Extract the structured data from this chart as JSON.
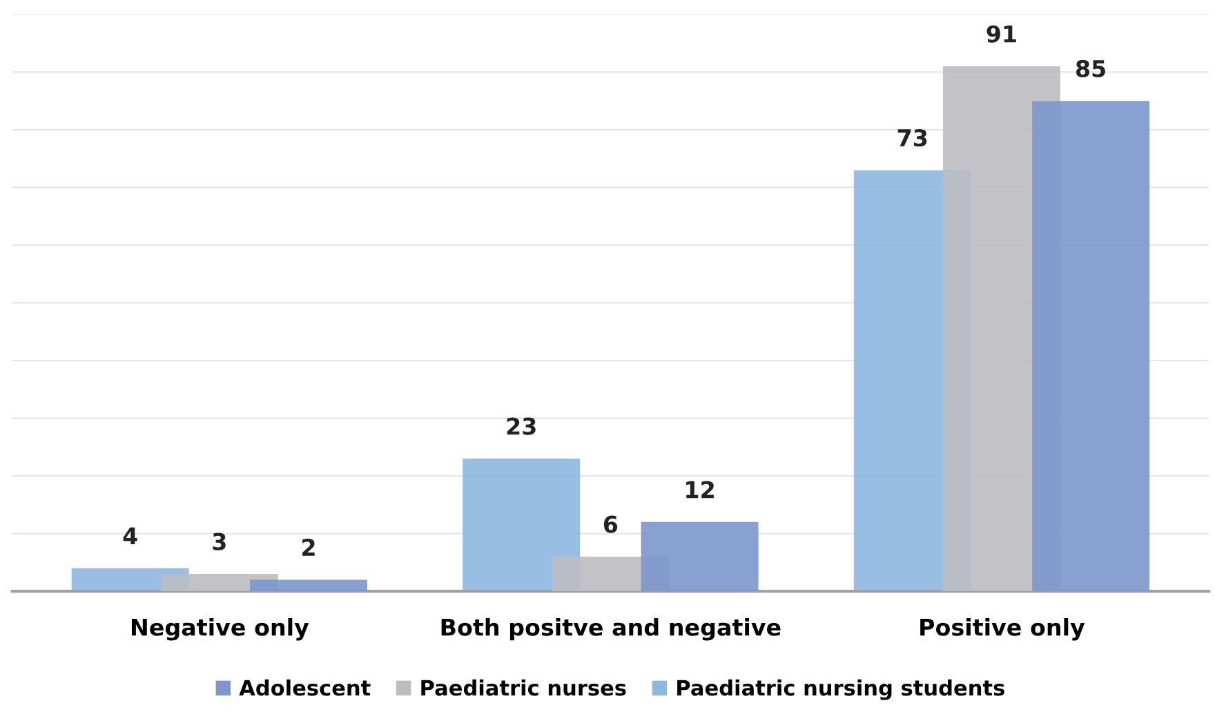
{
  "chart_data": {
    "type": "bar",
    "categories": [
      "Negative only",
      "Both positve and negative",
      "Positive only"
    ],
    "series": [
      {
        "name": "Paediatric nursing students",
        "color": "#8db8e0",
        "values": [
          4,
          23,
          73
        ]
      },
      {
        "name": "Paediatric nurses",
        "color": "#bdbdc1",
        "values": [
          3,
          6,
          91
        ]
      },
      {
        "name": "Adolescent",
        "color": "#7b97cc",
        "values": [
          2,
          12,
          85
        ]
      }
    ],
    "ylim": [
      0,
      100
    ],
    "yticks": [
      {
        "value": 0,
        "label": null
      },
      {
        "value": 10,
        "label": null
      },
      {
        "value": 20,
        "label": null
      },
      {
        "value": 30,
        "label": null
      },
      {
        "value": 40,
        "label": null
      },
      {
        "value": 50,
        "label": null
      },
      {
        "value": 60,
        "label": null
      },
      {
        "value": 70,
        "label": null
      },
      {
        "value": 80,
        "label": null
      },
      {
        "value": 90,
        "label": null
      },
      {
        "value": 100,
        "label": null
      }
    ],
    "tick_labels": "x",
    "grid": "y",
    "legend": "bottom",
    "data_labels": true
  }
}
